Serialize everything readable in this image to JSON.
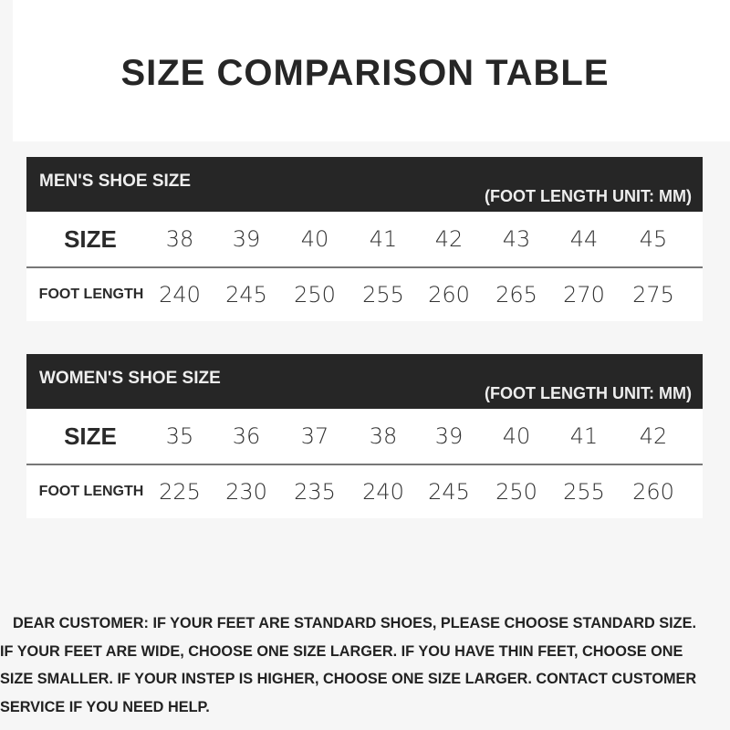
{
  "title": "SIZE COMPARISON TABLE",
  "tables": [
    {
      "name": "MEN'S SHOE SIZE",
      "unit": "(FOOT LENGTH UNIT: MM)",
      "size_label": "SIZE",
      "foot_label": "FOOT LENGTH",
      "sizes": [
        "38",
        "39",
        "40",
        "41",
        "42",
        "43",
        "44",
        "45"
      ],
      "lengths": [
        "240",
        "245",
        "250",
        "255",
        "260",
        "265",
        "270",
        "275"
      ]
    },
    {
      "name": "WOMEN'S SHOE SIZE",
      "unit": "(FOOT LENGTH UNIT: MM)",
      "size_label": "SIZE",
      "foot_label": "FOOT LENGTH",
      "sizes": [
        "35",
        "36",
        "37",
        "38",
        "39",
        "40",
        "41",
        "42"
      ],
      "lengths": [
        "225",
        "230",
        "235",
        "240",
        "245",
        "250",
        "255",
        "260"
      ]
    }
  ],
  "notice": [
    "DEAR CUSTOMER: IF YOUR FEET ARE STANDARD SHOES, PLEASE CHOOSE STANDARD SIZE.",
    "IF YOUR FEET ARE WIDE, CHOOSE ONE SIZE LARGER. IF YOU HAVE THIN FEET, CHOOSE ONE",
    "SIZE SMALLER. IF YOUR INSTEP IS HIGHER, CHOOSE ONE SIZE LARGER. CONTACT CUSTOMER",
    "SERVICE IF YOU NEED HELP."
  ]
}
